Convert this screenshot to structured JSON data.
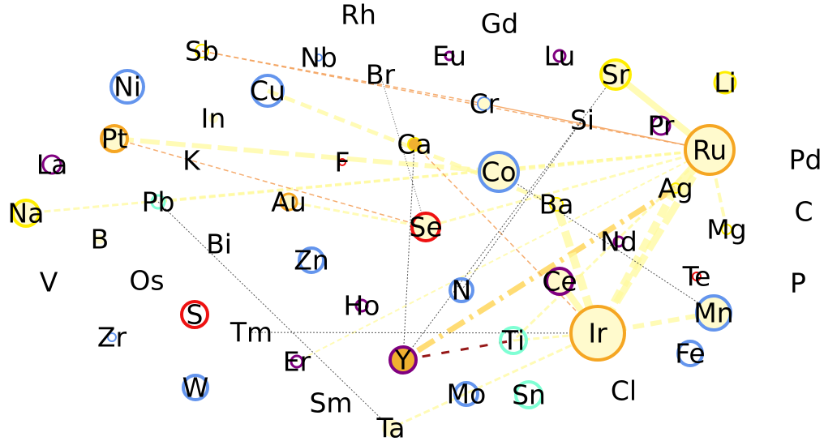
{
  "colors": {
    "yellow": "#ffee00",
    "orange": "#f5a623",
    "blue": "#6495ed",
    "purple": "#800080",
    "red": "#ee1111",
    "teal": "#7fffd4",
    "fill_cream": "#fffacd",
    "fill_gold": "#f0b030",
    "edge_pale": "#fffa9e",
    "edge_gold": "#ffd966",
    "edge_orange": "#f4a460",
    "edge_dark": "#8b0000"
  },
  "nodes": [
    {
      "id": "Rh",
      "label": "Rh"
    },
    {
      "id": "Gd",
      "label": "Gd"
    },
    {
      "id": "Sb",
      "label": "Sb"
    },
    {
      "id": "Nb",
      "label": "Nb"
    },
    {
      "id": "Eu",
      "label": "Eu"
    },
    {
      "id": "Lu",
      "label": "Lu"
    },
    {
      "id": "Sr",
      "label": "Sr"
    },
    {
      "id": "Li",
      "label": "Li"
    },
    {
      "id": "Ni",
      "label": "Ni"
    },
    {
      "id": "Cu",
      "label": "Cu"
    },
    {
      "id": "Br",
      "label": "Br"
    },
    {
      "id": "Cr",
      "label": "Cr"
    },
    {
      "id": "Si",
      "label": "Si"
    },
    {
      "id": "Pr",
      "label": "Pr"
    },
    {
      "id": "Ru",
      "label": "Ru"
    },
    {
      "id": "In",
      "label": "In"
    },
    {
      "id": "Pt",
      "label": "Pt"
    },
    {
      "id": "Ca",
      "label": "Ca"
    },
    {
      "id": "K",
      "label": "K"
    },
    {
      "id": "F",
      "label": "F"
    },
    {
      "id": "Co",
      "label": "Co"
    },
    {
      "id": "Pd",
      "label": "Pd"
    },
    {
      "id": "La",
      "label": "La"
    },
    {
      "id": "Ag",
      "label": "Ag"
    },
    {
      "id": "Na",
      "label": "Na"
    },
    {
      "id": "Pb",
      "label": "Pb"
    },
    {
      "id": "Au",
      "label": "Au"
    },
    {
      "id": "Ba",
      "label": "Ba"
    },
    {
      "id": "C",
      "label": "C"
    },
    {
      "id": "Se",
      "label": "Se"
    },
    {
      "id": "Mg",
      "label": "Mg"
    },
    {
      "id": "B",
      "label": "B"
    },
    {
      "id": "Bi",
      "label": "Bi"
    },
    {
      "id": "Nd",
      "label": "Nd"
    },
    {
      "id": "Zn",
      "label": "Zn"
    },
    {
      "id": "V",
      "label": "V"
    },
    {
      "id": "Os",
      "label": "Os"
    },
    {
      "id": "Te",
      "label": "Te"
    },
    {
      "id": "Ce",
      "label": "Ce"
    },
    {
      "id": "P",
      "label": "P"
    },
    {
      "id": "N",
      "label": "N"
    },
    {
      "id": "Ho",
      "label": "Ho"
    },
    {
      "id": "S",
      "label": "S"
    },
    {
      "id": "Mn",
      "label": "Mn"
    },
    {
      "id": "Tm",
      "label": "Tm"
    },
    {
      "id": "Ir",
      "label": "Ir"
    },
    {
      "id": "Zr",
      "label": "Zr"
    },
    {
      "id": "Ti",
      "label": "Ti"
    },
    {
      "id": "Fe",
      "label": "Fe"
    },
    {
      "id": "Er",
      "label": "Er"
    },
    {
      "id": "Y",
      "label": "Y"
    },
    {
      "id": "W",
      "label": "W"
    },
    {
      "id": "Cl",
      "label": "Cl"
    },
    {
      "id": "Mo",
      "label": "Mo"
    },
    {
      "id": "Sn",
      "label": "Sn"
    },
    {
      "id": "Sm",
      "label": "Sm"
    },
    {
      "id": "Ta",
      "label": "Ta"
    }
  ]
}
